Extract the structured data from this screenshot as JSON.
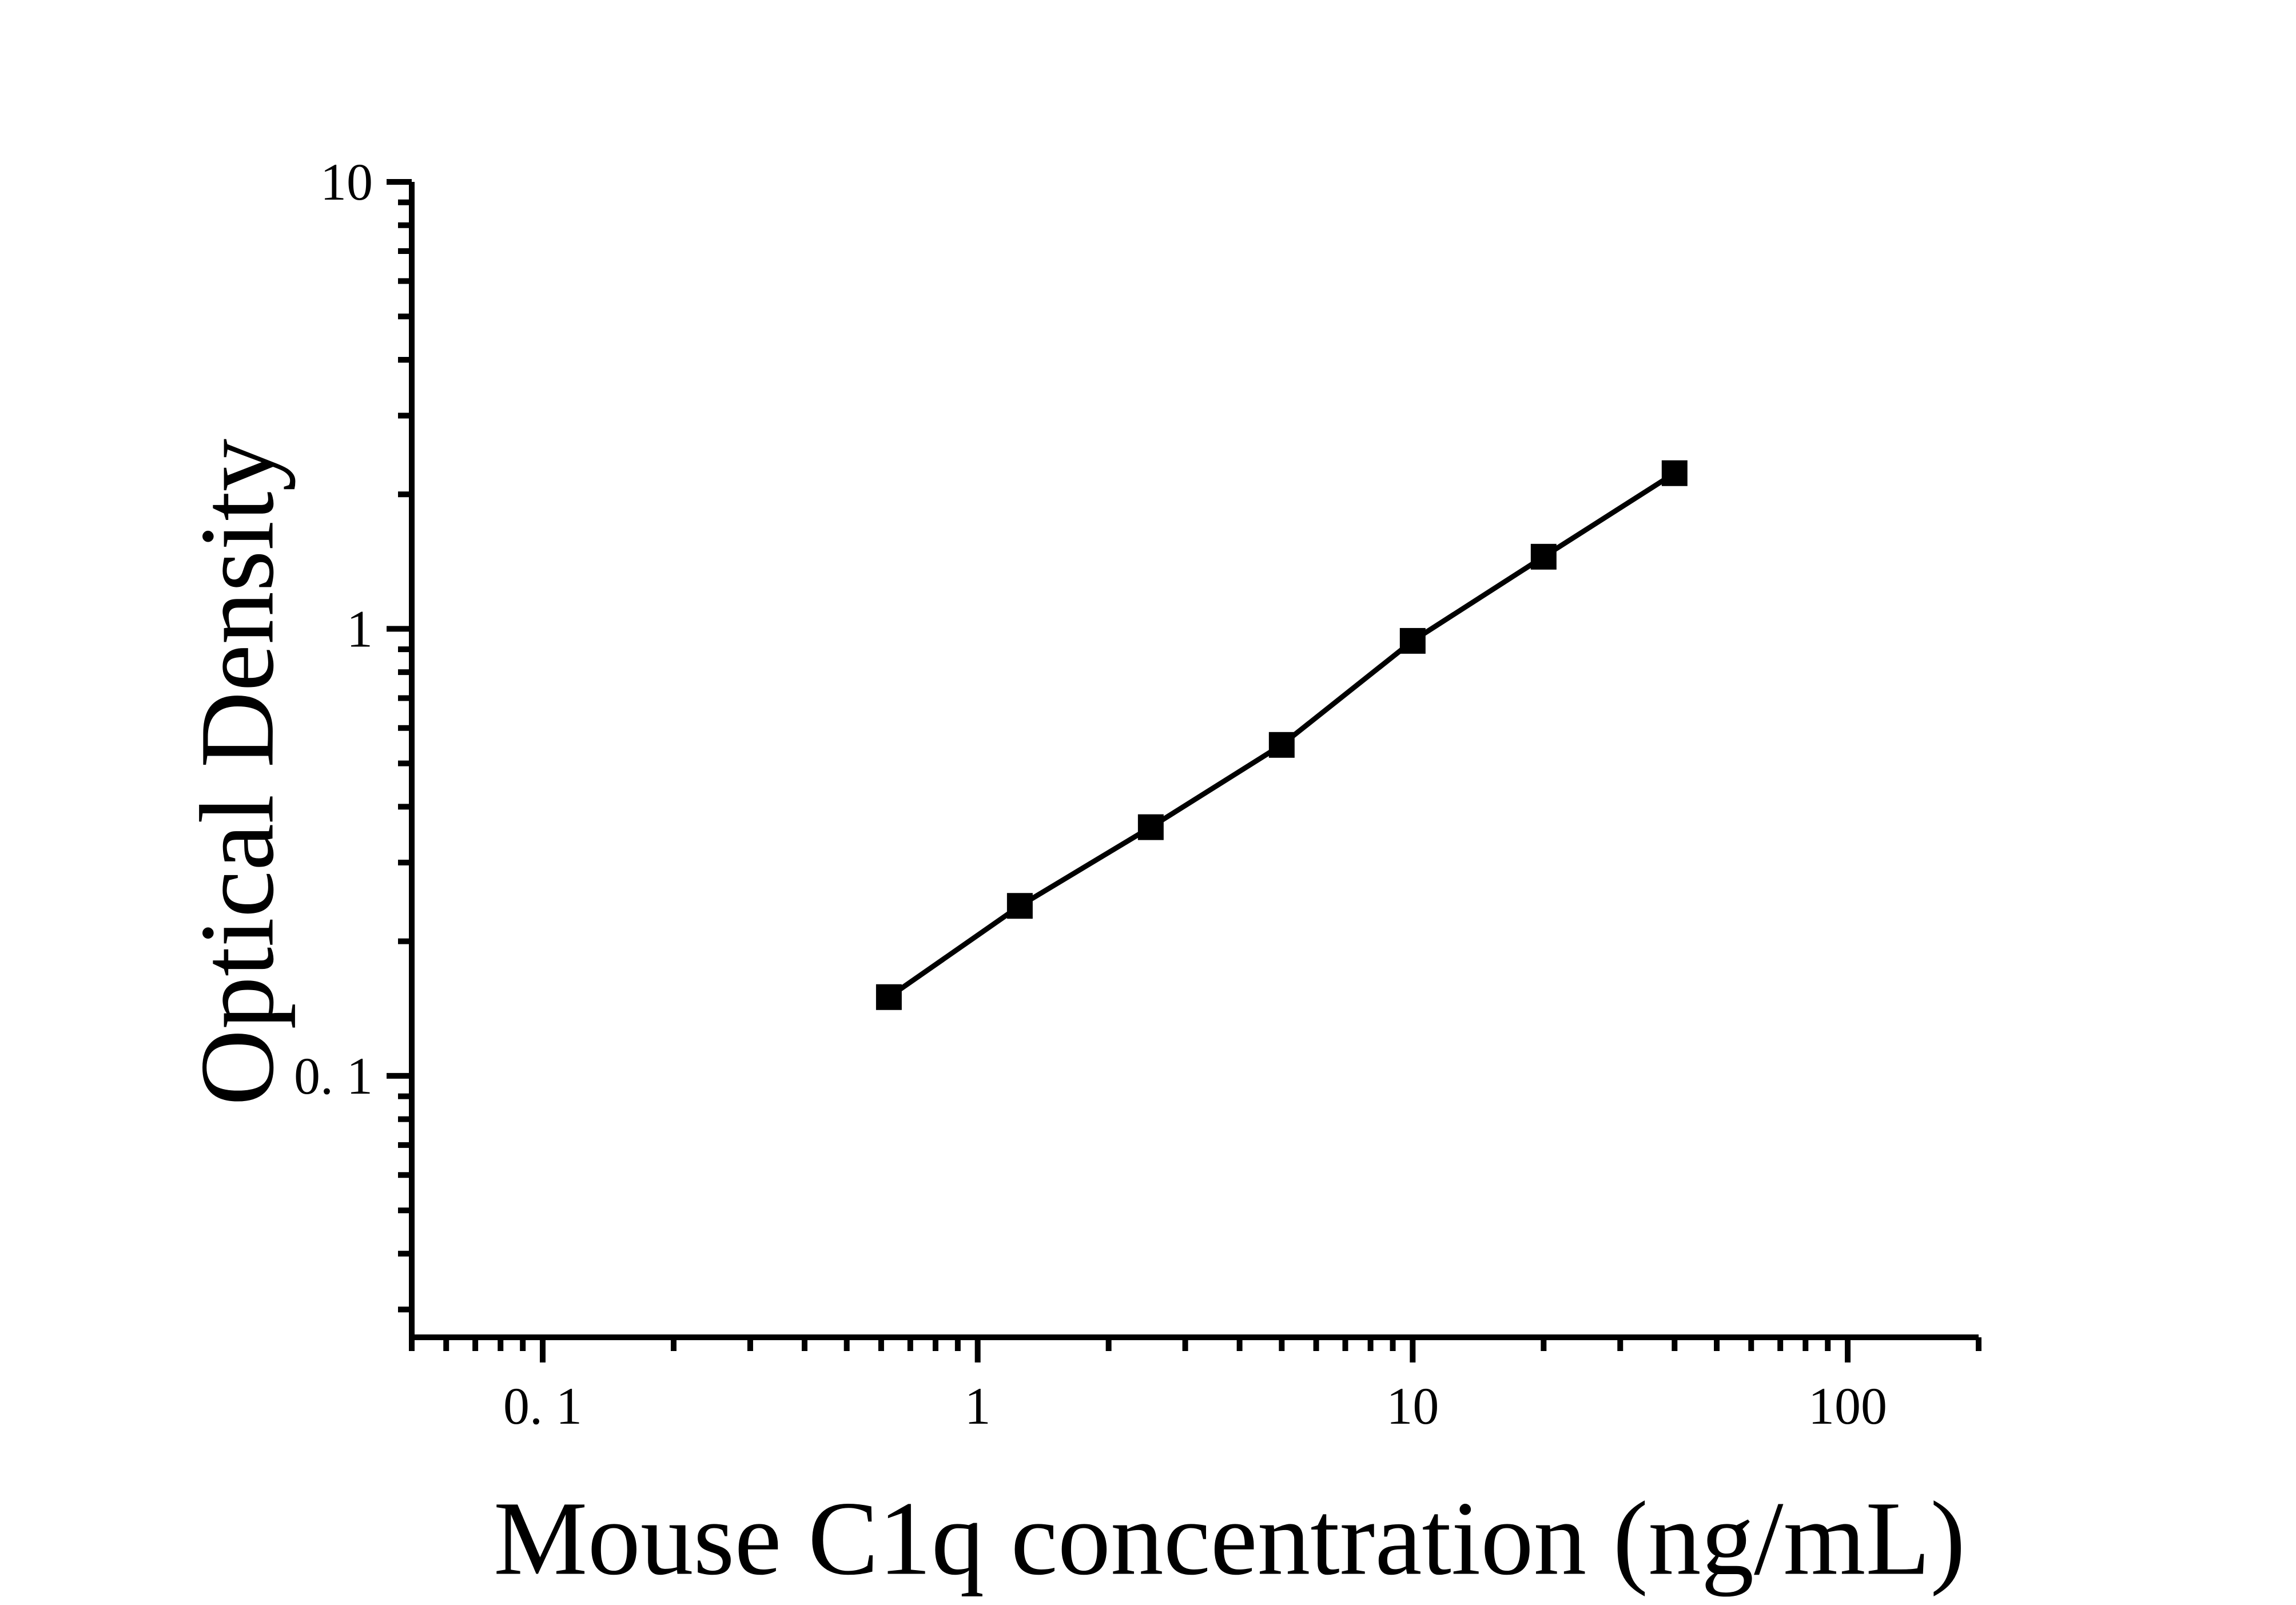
{
  "figure": {
    "background_color": "#ffffff",
    "axis_color": "#000000"
  },
  "chart_data": {
    "type": "line",
    "title": "",
    "xlabel": "Mouse C1q concentration (ng/mL)",
    "ylabel": "Optical Density",
    "x_scale": "log",
    "y_scale": "log",
    "xlim": [
      0.05,
      200
    ],
    "ylim": [
      0.026,
      10
    ],
    "x": [
      0.625,
      1.25,
      2.5,
      5,
      10,
      20,
      40
    ],
    "y": [
      0.15,
      0.24,
      0.36,
      0.55,
      0.94,
      1.45,
      2.23
    ],
    "x_tick_labels": [
      {
        "value": 0.1,
        "label": "0. 1"
      },
      {
        "value": 1,
        "label": "1"
      },
      {
        "value": 10,
        "label": "10"
      },
      {
        "value": 100,
        "label": "100"
      }
    ],
    "y_tick_labels": [
      {
        "value": 0.1,
        "label": "0. 1"
      },
      {
        "value": 1,
        "label": "1"
      },
      {
        "value": 10,
        "label": "10"
      }
    ],
    "marker": "filled-square",
    "line_color": "#000000",
    "marker_color": "#000000",
    "grid": false,
    "legend": "none"
  }
}
